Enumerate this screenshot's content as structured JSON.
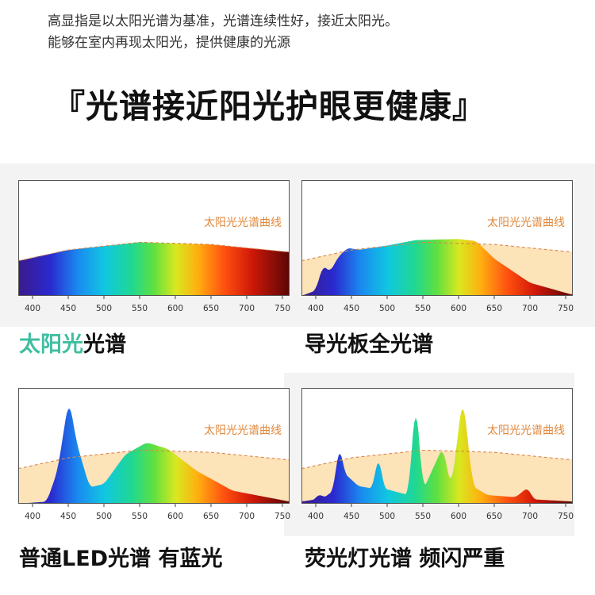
{
  "intro": {
    "line1": "高显指是以太阳光谱为基准，光谱连续性好，接近太阳光。",
    "line2": "能够在室内再现太阳光，提供健康的光源"
  },
  "headline": "『光谱接近阳光护眼更健康』",
  "colors": {
    "sun_fill": "#fde3b8",
    "sun_line": "#d9854a",
    "label": "#e0883c",
    "highlight": "#3fbfa0"
  },
  "chart_data": [
    {
      "type": "area",
      "x_ticks": [
        400,
        450,
        500,
        550,
        600,
        650,
        700,
        750
      ],
      "xlim": [
        380,
        760
      ],
      "curve_label": "太阳光光谱曲线",
      "caption_highlight": "太阳光",
      "caption": "光谱",
      "sun_curve": [
        [
          380,
          0.32
        ],
        [
          450,
          0.42
        ],
        [
          550,
          0.49
        ],
        [
          650,
          0.47
        ],
        [
          760,
          0.4
        ]
      ],
      "spectrum": [
        [
          380,
          0.32
        ],
        [
          450,
          0.42
        ],
        [
          550,
          0.49
        ],
        [
          650,
          0.47
        ],
        [
          760,
          0.4
        ]
      ]
    },
    {
      "type": "area",
      "x_ticks": [
        400,
        450,
        500,
        550,
        600,
        650,
        700,
        750
      ],
      "xlim": [
        380,
        760
      ],
      "curve_label": "太阳光光谱曲线",
      "caption_highlight": "",
      "caption": "导光板全光谱",
      "sun_curve": [
        [
          380,
          0.32
        ],
        [
          450,
          0.42
        ],
        [
          550,
          0.49
        ],
        [
          650,
          0.47
        ],
        [
          760,
          0.4
        ]
      ],
      "spectrum": [
        [
          380,
          0
        ],
        [
          400,
          0.05
        ],
        [
          410,
          0.28
        ],
        [
          420,
          0.22
        ],
        [
          432,
          0.36
        ],
        [
          445,
          0.44
        ],
        [
          460,
          0.42
        ],
        [
          500,
          0.46
        ],
        [
          540,
          0.51
        ],
        [
          600,
          0.52
        ],
        [
          625,
          0.5
        ],
        [
          650,
          0.34
        ],
        [
          700,
          0.12
        ],
        [
          760,
          0.01
        ]
      ]
    },
    {
      "type": "area",
      "x_ticks": [
        400,
        450,
        500,
        550,
        600,
        650,
        700,
        750
      ],
      "xlim": [
        380,
        760
      ],
      "curve_label": "太阳光光谱曲线",
      "caption_highlight": "",
      "caption": "普通LED光谱 有蓝光",
      "sun_curve": [
        [
          380,
          0.32
        ],
        [
          450,
          0.42
        ],
        [
          550,
          0.49
        ],
        [
          650,
          0.47
        ],
        [
          760,
          0.4
        ]
      ],
      "spectrum": [
        [
          380,
          0
        ],
        [
          420,
          0.02
        ],
        [
          435,
          0.3
        ],
        [
          451,
          0.97
        ],
        [
          462,
          0.55
        ],
        [
          480,
          0.15
        ],
        [
          500,
          0.18
        ],
        [
          530,
          0.45
        ],
        [
          560,
          0.56
        ],
        [
          590,
          0.5
        ],
        [
          630,
          0.3
        ],
        [
          680,
          0.12
        ],
        [
          760,
          0.02
        ]
      ]
    },
    {
      "type": "area",
      "x_ticks": [
        400,
        450,
        500,
        550,
        600,
        650,
        700,
        750
      ],
      "xlim": [
        380,
        760
      ],
      "curve_label": "太阳光光谱曲线",
      "caption_highlight": "",
      "caption": "荧光灯光谱 频闪严重",
      "sun_curve": [
        [
          380,
          0.32
        ],
        [
          450,
          0.42
        ],
        [
          550,
          0.49
        ],
        [
          650,
          0.47
        ],
        [
          760,
          0.4
        ]
      ],
      "spectrum": [
        [
          380,
          0.02
        ],
        [
          400,
          0.04
        ],
        [
          405,
          0.11
        ],
        [
          410,
          0.05
        ],
        [
          425,
          0.12
        ],
        [
          433,
          0.58
        ],
        [
          440,
          0.28
        ],
        [
          460,
          0.16
        ],
        [
          480,
          0.14
        ],
        [
          488,
          0.48
        ],
        [
          495,
          0.14
        ],
        [
          530,
          0.08
        ],
        [
          540,
          1.0
        ],
        [
          550,
          0.12
        ],
        [
          578,
          0.52
        ],
        [
          590,
          0.14
        ],
        [
          606,
          1.0
        ],
        [
          620,
          0.16
        ],
        [
          640,
          0.08
        ],
        [
          680,
          0.06
        ],
        [
          697,
          0.15
        ],
        [
          705,
          0.04
        ],
        [
          760,
          0.02
        ]
      ]
    }
  ]
}
